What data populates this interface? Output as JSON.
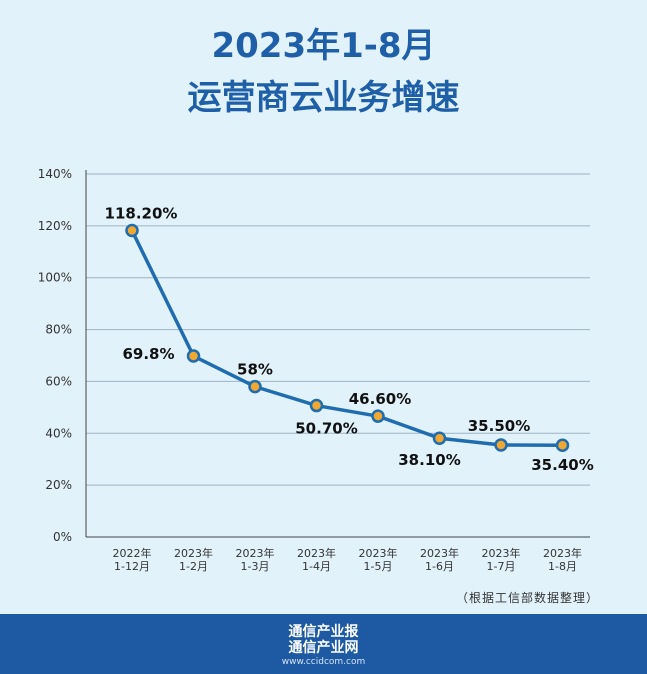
{
  "header": {
    "line1": "2023年1-8月",
    "line2": "运营商云业务增速"
  },
  "chart_data": {
    "type": "line",
    "title": "2023年1-8月 运营商云业务增速",
    "categories": [
      [
        "2022年",
        "1-12月"
      ],
      [
        "2023年",
        "1-2月"
      ],
      [
        "2023年",
        "1-3月"
      ],
      [
        "2023年",
        "1-4月"
      ],
      [
        "2023年",
        "1-5月"
      ],
      [
        "2023年",
        "1-6月"
      ],
      [
        "2023年",
        "1-7月"
      ],
      [
        "2023年",
        "1-8月"
      ]
    ],
    "values": [
      118.2,
      69.8,
      58,
      50.7,
      46.6,
      38.1,
      35.5,
      35.4
    ],
    "data_labels": [
      "118.20%",
      "69.8%",
      "58%",
      "50.70%",
      "46.60%",
      "38.10%",
      "35.50%",
      "35.40%"
    ],
    "y_ticks": [
      "0%",
      "20%",
      "40%",
      "60%",
      "80%",
      "100%",
      "120%",
      "140%"
    ],
    "ylim": [
      0,
      140
    ],
    "grid": true,
    "colors": {
      "line": "#1f6cb0",
      "marker": "#f0a830",
      "grid": "#9db3c4"
    }
  },
  "source_note": "（根据工信部数据整理）",
  "footer": {
    "brand_line1": "通信产业报",
    "brand_line2": "通信产业网",
    "website": "www.ccidcom.com"
  }
}
